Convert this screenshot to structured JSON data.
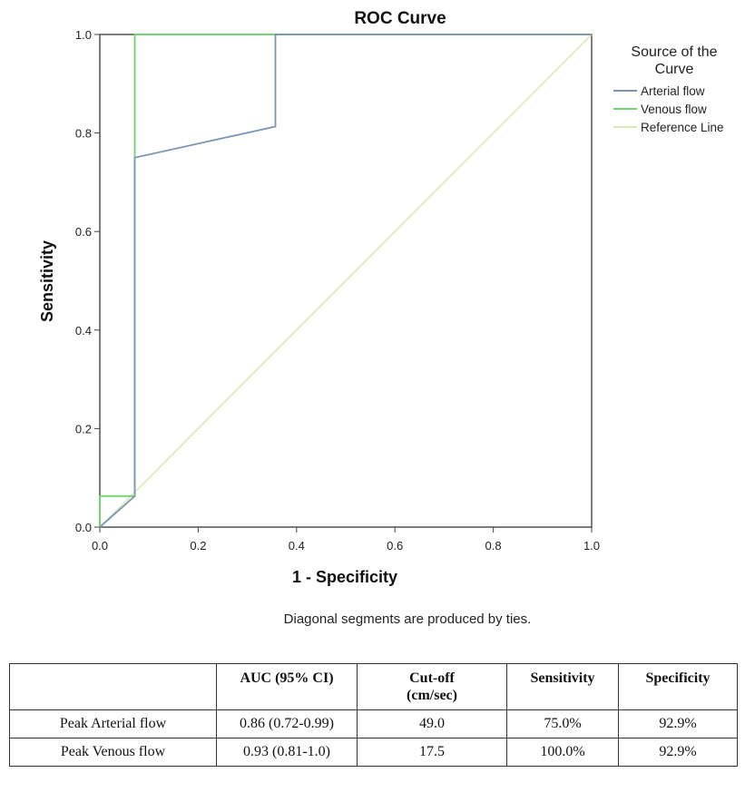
{
  "chart_data": {
    "type": "line",
    "title": "ROC Curve",
    "xlabel": "1 - Specificity",
    "ylabel": "Sensitivity",
    "xlim": [
      0.0,
      1.0
    ],
    "ylim": [
      0.0,
      1.0
    ],
    "xticks": [
      "0.0",
      "0.2",
      "0.4",
      "0.6",
      "0.8",
      "1.0"
    ],
    "yticks": [
      "0.0",
      "0.2",
      "0.4",
      "0.6",
      "0.8",
      "1.0"
    ],
    "legend_title": "Source of the Curve",
    "legend_position": "top-right",
    "note": "Diagonal segments are produced by ties.",
    "series": [
      {
        "name": "Arterial flow",
        "color": "#7a95b8",
        "x": [
          0.0,
          0.071,
          0.071,
          0.357,
          0.357,
          1.0
        ],
        "y": [
          0.0,
          0.063,
          0.75,
          0.813,
          1.0,
          1.0
        ]
      },
      {
        "name": "Venous flow",
        "color": "#6ed66e",
        "x": [
          0.0,
          0.0,
          0.071,
          0.071,
          1.0
        ],
        "y": [
          0.0,
          0.063,
          0.063,
          1.0,
          1.0
        ]
      },
      {
        "name": "Reference Line",
        "color": "#d8e8b6",
        "x": [
          0.0,
          1.0
        ],
        "y": [
          0.0,
          1.0
        ]
      }
    ]
  },
  "table": {
    "headers": [
      "",
      "AUC (95% CI)",
      "Cut-off (cm/sec)",
      "Sensitivity",
      "Specificity"
    ],
    "header_lines": {
      "cutoff_line1": "Cut-off",
      "cutoff_line2": "(cm/sec)"
    },
    "rows": [
      [
        "Peak Arterial flow",
        "0.86 (0.72-0.99)",
        "49.0",
        "75.0%",
        "92.9%"
      ],
      [
        "Peak Venous flow",
        "0.93 (0.81-1.0)",
        "17.5",
        "100.0%",
        "92.9%"
      ]
    ]
  }
}
